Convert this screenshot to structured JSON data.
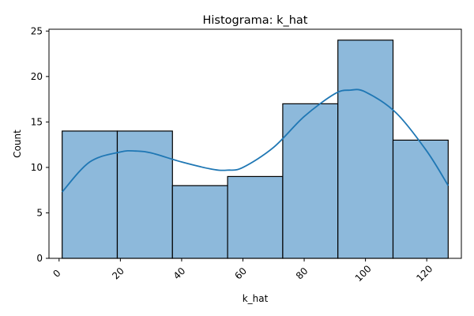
{
  "chart_data": {
    "type": "bar",
    "title": "Histograma: k_hat",
    "xlabel": "k_hat",
    "ylabel": "Count",
    "bins": [
      {
        "start": 1,
        "end": 19,
        "count": 14
      },
      {
        "start": 19,
        "end": 37,
        "count": 14
      },
      {
        "start": 37,
        "end": 55,
        "count": 8
      },
      {
        "start": 55,
        "end": 73,
        "count": 9
      },
      {
        "start": 73,
        "end": 91,
        "count": 17
      },
      {
        "start": 91,
        "end": 109,
        "count": 24
      },
      {
        "start": 109,
        "end": 127,
        "count": 13
      }
    ],
    "kde": {
      "x": [
        1,
        10,
        20,
        25,
        30,
        40,
        50,
        55,
        60,
        70,
        80,
        90,
        95,
        100,
        110,
        120,
        127
      ],
      "y": [
        7.3,
        10.6,
        11.7,
        11.8,
        11.6,
        10.6,
        9.8,
        9.7,
        10.0,
        12.2,
        15.6,
        18.1,
        18.5,
        18.3,
        16.0,
        11.8,
        8.0
      ]
    },
    "xticks": [
      "0",
      "20",
      "40",
      "60",
      "80",
      "100",
      "120"
    ],
    "xtick_values": [
      0,
      20,
      40,
      60,
      80,
      100,
      120
    ],
    "yticks": [
      "0",
      "5",
      "10",
      "15",
      "20",
      "25"
    ],
    "ytick_values": [
      0,
      5,
      10,
      15,
      20,
      25
    ],
    "xlim": [
      -3.3,
      131.3
    ],
    "ylim": [
      0,
      25.2
    ],
    "bar_color": "#8db9db",
    "bar_edge_color": "#000000",
    "kde_color": "#1f77b4",
    "grid": false
  }
}
